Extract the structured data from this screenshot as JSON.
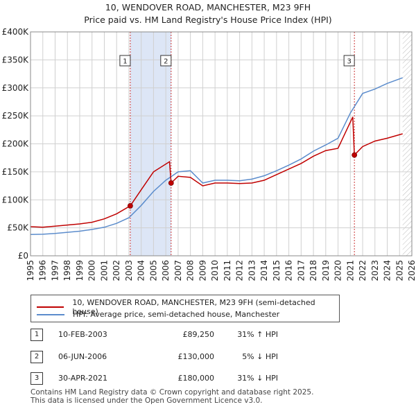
{
  "title_line1": "10, WENDOVER ROAD, MANCHESTER, M23 9FH",
  "title_line2": "Price paid vs. HM Land Registry's House Price Index (HPI)",
  "legend": {
    "property": "10, WENDOVER ROAD, MANCHESTER, M23 9FH (semi-detached house)",
    "hpi": "HPI: Average price, semi-detached house, Manchester"
  },
  "colors": {
    "property": "#c00000",
    "hpi": "#5b8ccc",
    "shade": "#dde6f6",
    "grid": "#d0d0d0",
    "vline": "#cc3333"
  },
  "transactions": [
    {
      "num": "1",
      "date": "10-FEB-2003",
      "price": "£89,250",
      "delta": "31% ↑ HPI"
    },
    {
      "num": "2",
      "date": "06-JUN-2006",
      "price": "£130,000",
      "delta": "5% ↓ HPI"
    },
    {
      "num": "3",
      "date": "30-APR-2021",
      "price": "£180,000",
      "delta": "31% ↓ HPI"
    }
  ],
  "footer_line1": "Contains HM Land Registry data © Crown copyright and database right 2025.",
  "footer_line2": "This data is licensed under the Open Government Licence v3.0.",
  "chart_data": {
    "type": "line",
    "title": "10, WENDOVER ROAD, MANCHESTER, M23 9FH — Price paid vs. HM Land Registry's House Price Index (HPI)",
    "xlabel": "",
    "ylabel": "",
    "xlim": [
      1995,
      2026
    ],
    "ylim": [
      0,
      400000
    ],
    "yticks": [
      0,
      50000,
      100000,
      150000,
      200000,
      250000,
      300000,
      350000,
      400000
    ],
    "ytick_labels": [
      "£0",
      "£50K",
      "£100K",
      "£150K",
      "£200K",
      "£250K",
      "£300K",
      "£350K",
      "£400K"
    ],
    "xticks": [
      1995,
      1996,
      1997,
      1998,
      1999,
      2000,
      2001,
      2002,
      2003,
      2004,
      2005,
      2006,
      2007,
      2008,
      2009,
      2010,
      2011,
      2012,
      2013,
      2014,
      2015,
      2016,
      2017,
      2018,
      2019,
      2020,
      2021,
      2022,
      2023,
      2024,
      2025,
      2026
    ],
    "grid": true,
    "legend_position": "below-chart",
    "shaded_ranges": [
      [
        2003.11,
        2006.43
      ]
    ],
    "future_hatch_from": 2025.25,
    "sales": [
      {
        "label": "1",
        "x": 2003.11,
        "y": 89250
      },
      {
        "label": "2",
        "x": 2006.43,
        "y": 130000
      },
      {
        "label": "3",
        "x": 2021.33,
        "y": 180000
      }
    ],
    "series": [
      {
        "name": "10, WENDOVER ROAD, MANCHESTER, M23 9FH (semi-detached house)",
        "x": [
          1995,
          1996,
          1997,
          1998,
          1999,
          2000,
          2001,
          2002,
          2003.11,
          2004,
          2005,
          2006.3,
          2006.43,
          2007,
          2008,
          2009,
          2010,
          2011,
          2012,
          2013,
          2014,
          2015,
          2016,
          2017,
          2018,
          2019,
          2020,
          2021.2,
          2021.33,
          2022,
          2023,
          2024,
          2025.25
        ],
        "values": [
          52000,
          51000,
          53000,
          55000,
          57000,
          60000,
          66000,
          75000,
          89250,
          118000,
          150000,
          168000,
          130000,
          142000,
          140000,
          125000,
          130000,
          130000,
          129000,
          130000,
          135000,
          145000,
          155000,
          165000,
          178000,
          188000,
          192000,
          248000,
          180000,
          195000,
          205000,
          210000,
          218000
        ]
      },
      {
        "name": "HPI: Average price, semi-detached house, Manchester",
        "x": [
          1995,
          1996,
          1997,
          1998,
          1999,
          2000,
          2001,
          2002,
          2003,
          2004,
          2005,
          2006,
          2007,
          2008,
          2009,
          2010,
          2011,
          2012,
          2013,
          2014,
          2015,
          2016,
          2017,
          2018,
          2019,
          2020,
          2021,
          2022,
          2023,
          2024,
          2025.25
        ],
        "values": [
          38000,
          38500,
          40000,
          42000,
          44000,
          47000,
          51000,
          58000,
          68000,
          90000,
          115000,
          135000,
          150000,
          152000,
          130000,
          135000,
          135000,
          134000,
          137000,
          143000,
          152000,
          162000,
          173000,
          187000,
          198000,
          210000,
          255000,
          290000,
          298000,
          308000,
          318000
        ]
      }
    ]
  }
}
